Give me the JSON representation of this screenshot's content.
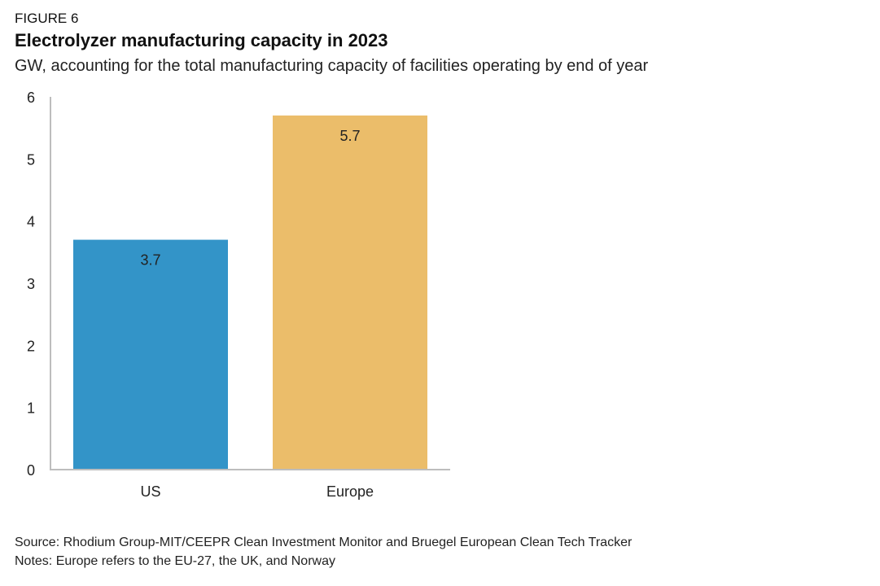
{
  "figure_label": "FIGURE 6",
  "footer": {
    "source": "Source: Rhodium Group-MIT/CEEPR Clean Investment Monitor and Bruegel European Clean Tech Tracker",
    "notes": "Notes: Europe refers to the EU-27, the UK, and Norway"
  },
  "chart_data": {
    "type": "bar",
    "title": "Electrolyzer manufacturing capacity in 2023",
    "subtitle": "GW, accounting for the total manufacturing capacity of facilities operating by end of year",
    "xlabel": "",
    "ylabel": "",
    "categories": [
      "US",
      "Europe"
    ],
    "values": [
      3.7,
      5.7
    ],
    "data_labels": [
      "3.7",
      "5.7"
    ],
    "colors": [
      "#3394c8",
      "#ebbd6a"
    ],
    "ylim": [
      0,
      6
    ],
    "yticks": [
      0,
      1,
      2,
      3,
      4,
      5,
      6
    ],
    "grid": false,
    "legend": "none",
    "axis_color": "#bdbdbd"
  }
}
